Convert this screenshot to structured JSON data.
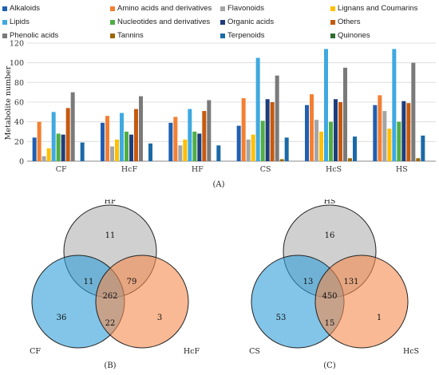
{
  "chart_data": [
    {
      "type": "bar",
      "panel_label": "(A)",
      "ylabel": "Metabolite number",
      "ylim": [
        0,
        120
      ],
      "yticks": [
        0,
        20,
        40,
        60,
        80,
        100,
        120
      ],
      "categories": [
        "CF",
        "HcF",
        "HF",
        "CS",
        "HcS",
        "HS"
      ],
      "legend_position": "top",
      "series": [
        {
          "name": "Alkaloids",
          "color": "#1f5fb3",
          "values": [
            24,
            39,
            39,
            36,
            57,
            57
          ]
        },
        {
          "name": "Amino acids and derivatives",
          "color": "#f37f32",
          "values": [
            40,
            46,
            45,
            64,
            68,
            67
          ]
        },
        {
          "name": "Flavonoids",
          "color": "#a5a5a5",
          "values": [
            5,
            15,
            16,
            22,
            42,
            51
          ]
        },
        {
          "name": "Lignans and Coumarins",
          "color": "#ffc000",
          "values": [
            13,
            22,
            22,
            27,
            30,
            33
          ]
        },
        {
          "name": "Lipids",
          "color": "#3fa9e0",
          "values": [
            50,
            49,
            53,
            105,
            114,
            114
          ]
        },
        {
          "name": "Nucleotides and derivatives",
          "color": "#4fae45",
          "values": [
            28,
            30,
            30,
            41,
            40,
            40
          ]
        },
        {
          "name": "Organic acids",
          "color": "#1f3d7a",
          "values": [
            27,
            27,
            28,
            63,
            63,
            61
          ]
        },
        {
          "name": "Others",
          "color": "#c55a11",
          "values": [
            54,
            53,
            51,
            60,
            60,
            59
          ]
        },
        {
          "name": "Phenolic acids",
          "color": "#7a7a7a",
          "values": [
            70,
            66,
            62,
            87,
            95,
            100
          ]
        },
        {
          "name": "Tannins",
          "color": "#9c6500",
          "values": [
            0,
            0,
            0,
            2,
            3,
            3
          ]
        },
        {
          "name": "Terpenoids",
          "color": "#1a6aa6",
          "values": [
            19,
            18,
            16,
            24,
            25,
            26
          ]
        },
        {
          "name": "Quinones",
          "color": "#2e6b2e",
          "values": [
            0,
            0,
            0,
            0,
            0,
            0
          ]
        }
      ]
    },
    {
      "type": "venn",
      "panel_label": "(B)",
      "sets": [
        {
          "name": "HF",
          "color": "#b0b0b0"
        },
        {
          "name": "CF",
          "color": "#2f9fd8"
        },
        {
          "name": "HcF",
          "color": "#f58a4d"
        }
      ],
      "regions": {
        "top_only": "11",
        "left_only": "36",
        "right_only": "3",
        "top_left": "11",
        "top_right": "79",
        "left_right": "22",
        "all": "262"
      }
    },
    {
      "type": "venn",
      "panel_label": "(C)",
      "sets": [
        {
          "name": "HS",
          "color": "#b0b0b0"
        },
        {
          "name": "CS",
          "color": "#2f9fd8"
        },
        {
          "name": "HcS",
          "color": "#f58a4d"
        }
      ],
      "regions": {
        "top_only": "16",
        "left_only": "53",
        "right_only": "1",
        "top_left": "13",
        "top_right": "131",
        "left_right": "15",
        "all": "450"
      }
    }
  ]
}
